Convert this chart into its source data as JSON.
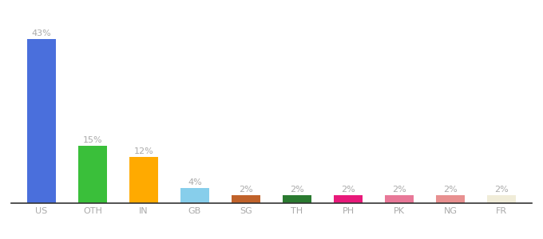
{
  "categories": [
    "US",
    "OTH",
    "IN",
    "GB",
    "SG",
    "TH",
    "PH",
    "PK",
    "NG",
    "FR"
  ],
  "values": [
    43,
    15,
    12,
    4,
    2,
    2,
    2,
    2,
    2,
    2
  ],
  "bar_colors": [
    "#4a6fdc",
    "#3abf3a",
    "#ffaa00",
    "#87ceeb",
    "#c0622a",
    "#2a7a30",
    "#e8197a",
    "#e87898",
    "#e89090",
    "#f0ecd8"
  ],
  "labels": [
    "43%",
    "15%",
    "12%",
    "4%",
    "2%",
    "2%",
    "2%",
    "2%",
    "2%",
    "2%"
  ],
  "background_color": "#ffffff",
  "ylim": [
    0,
    50
  ],
  "label_fontsize": 8,
  "tick_fontsize": 8,
  "label_color": "#aaaaaa",
  "tick_color": "#aaaaaa",
  "bar_width": 0.55
}
